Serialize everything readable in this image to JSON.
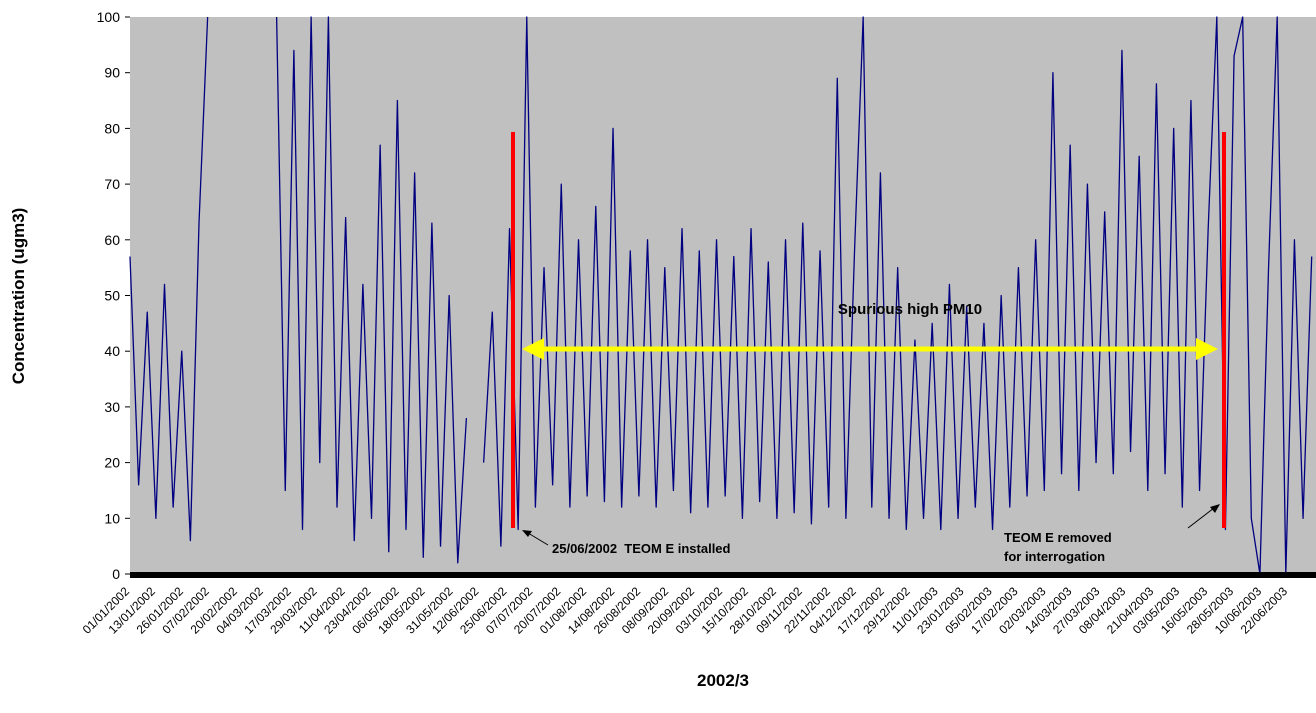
{
  "chart_data": {
    "type": "line",
    "y_label": "Concentration (ugm3)",
    "x_label": "2002/3",
    "color": "#000080",
    "grid": false,
    "ylim": [
      0,
      100
    ],
    "yticks": [
      0,
      10,
      20,
      30,
      40,
      50,
      60,
      70,
      80,
      90,
      100
    ],
    "xlim": [
      "01/01/2002",
      "05/07/2003"
    ],
    "xticks": [
      "01/01/2002",
      "13/01/2002",
      "26/01/2002",
      "07/02/2002",
      "20/02/2002",
      "04/03/2002",
      "17/03/2002",
      "29/03/2002",
      "11/04/2002",
      "23/04/2002",
      "06/05/2002",
      "18/05/2002",
      "31/05/2002",
      "12/06/2002",
      "25/06/2002",
      "07/07/2002",
      "20/07/2002",
      "01/08/2002",
      "14/08/2002",
      "26/08/2002",
      "08/09/2002",
      "20/09/2002",
      "03/10/2002",
      "15/10/2002",
      "28/10/2002",
      "09/11/2002",
      "22/11/2002",
      "04/12/2002",
      "17/12/2002",
      "29/12/2002",
      "11/01/2003",
      "23/01/2003",
      "05/02/2003",
      "17/02/2003",
      "02/03/2003",
      "14/03/2003",
      "27/03/2003",
      "08/04/2003",
      "21/04/2003",
      "03/05/2003",
      "16/05/2003",
      "28/05/2003",
      "10/06/2003",
      "22/06/2003"
    ],
    "x": [
      "01/01/2002",
      "05/01/2002",
      "09/01/2002",
      "13/01/2002",
      "17/01/2002",
      "21/01/2002",
      "25/01/2002",
      "29/01/2002",
      "02/02/2002",
      "06/02/2002",
      "10/02/2002",
      "14/02/2002",
      "18/02/2002",
      "22/02/2002",
      "26/02/2002",
      "02/03/2002",
      "06/03/2002",
      "10/03/2002",
      "14/03/2002",
      "18/03/2002",
      "22/03/2002",
      "26/03/2002",
      "30/03/2002",
      "03/04/2002",
      "07/04/2002",
      "11/04/2002",
      "15/04/2002",
      "19/04/2002",
      "23/04/2002",
      "27/04/2002",
      "01/05/2002",
      "05/05/2002",
      "09/05/2002",
      "13/05/2002",
      "17/05/2002",
      "21/05/2002",
      "25/05/2002",
      "29/05/2002",
      "02/06/2002",
      "06/06/2002",
      "10/06/2002",
      "14/06/2002",
      "18/06/2002",
      "22/06/2002",
      "26/06/2002",
      "30/06/2002",
      "04/07/2002",
      "08/07/2002",
      "12/07/2002",
      "16/07/2002",
      "20/07/2002",
      "24/07/2002",
      "28/07/2002",
      "01/08/2002",
      "05/08/2002",
      "09/08/2002",
      "13/08/2002",
      "17/08/2002",
      "21/08/2002",
      "25/08/2002",
      "29/08/2002",
      "02/09/2002",
      "06/09/2002",
      "10/09/2002",
      "14/09/2002",
      "18/09/2002",
      "22/09/2002",
      "26/09/2002",
      "30/09/2002",
      "04/10/2002",
      "08/10/2002",
      "12/10/2002",
      "16/10/2002",
      "20/10/2002",
      "24/10/2002",
      "28/10/2002",
      "01/11/2002",
      "05/11/2002",
      "09/11/2002",
      "13/11/2002",
      "17/11/2002",
      "21/11/2002",
      "25/11/2002",
      "29/11/2002",
      "03/12/2002",
      "07/12/2002",
      "11/12/2002",
      "15/12/2002",
      "19/12/2002",
      "23/12/2002",
      "27/12/2002",
      "31/12/2002",
      "04/01/2003",
      "08/01/2003",
      "12/01/2003",
      "16/01/2003",
      "20/01/2003",
      "24/01/2003",
      "28/01/2003",
      "01/02/2003",
      "05/02/2003",
      "09/02/2003",
      "13/02/2003",
      "17/02/2003",
      "21/02/2003",
      "25/02/2003",
      "01/03/2003",
      "05/03/2003",
      "09/03/2003",
      "13/03/2003",
      "17/03/2003",
      "21/03/2003",
      "25/03/2003",
      "29/03/2003",
      "02/04/2003",
      "06/04/2003",
      "10/04/2003",
      "14/04/2003",
      "18/04/2003",
      "22/04/2003",
      "26/04/2003",
      "30/04/2003",
      "04/05/2003",
      "08/05/2003",
      "12/05/2003",
      "16/05/2003",
      "20/05/2003",
      "24/05/2003",
      "28/05/2003",
      "01/06/2003",
      "05/06/2003",
      "09/06/2003",
      "13/06/2003",
      "17/06/2003",
      "21/06/2003",
      "25/06/2003",
      "29/06/2003",
      "03/07/2003"
    ],
    "values": [
      57,
      16,
      47,
      10,
      52,
      12,
      40,
      6,
      63,
      100,
      null,
      null,
      null,
      null,
      null,
      null,
      null,
      100,
      15,
      94,
      8,
      100,
      20,
      100,
      12,
      64,
      6,
      52,
      10,
      77,
      4,
      85,
      8,
      72,
      3,
      63,
      5,
      50,
      2,
      28,
      null,
      20,
      47,
      5,
      62,
      8,
      100,
      12,
      55,
      16,
      70,
      12,
      60,
      14,
      66,
      13,
      80,
      12,
      58,
      14,
      60,
      12,
      55,
      15,
      62,
      11,
      58,
      12,
      60,
      14,
      57,
      10,
      62,
      13,
      56,
      10,
      60,
      11,
      63,
      9,
      58,
      12,
      89,
      10,
      58,
      100,
      12,
      72,
      10,
      55,
      8,
      42,
      10,
      45,
      8,
      52,
      10,
      48,
      12,
      45,
      8,
      50,
      12,
      55,
      14,
      60,
      15,
      90,
      18,
      77,
      15,
      70,
      20,
      65,
      18,
      94,
      22,
      75,
      15,
      88,
      18,
      80,
      12,
      85,
      15,
      62,
      100,
      8,
      93,
      100,
      10,
      0,
      55,
      100,
      0,
      60,
      10,
      57
    ],
    "annotations": [
      "Spurious high PM10",
      "25/06/2002  TEOM E installed",
      "TEOM E removed",
      "for interrogation"
    ]
  }
}
